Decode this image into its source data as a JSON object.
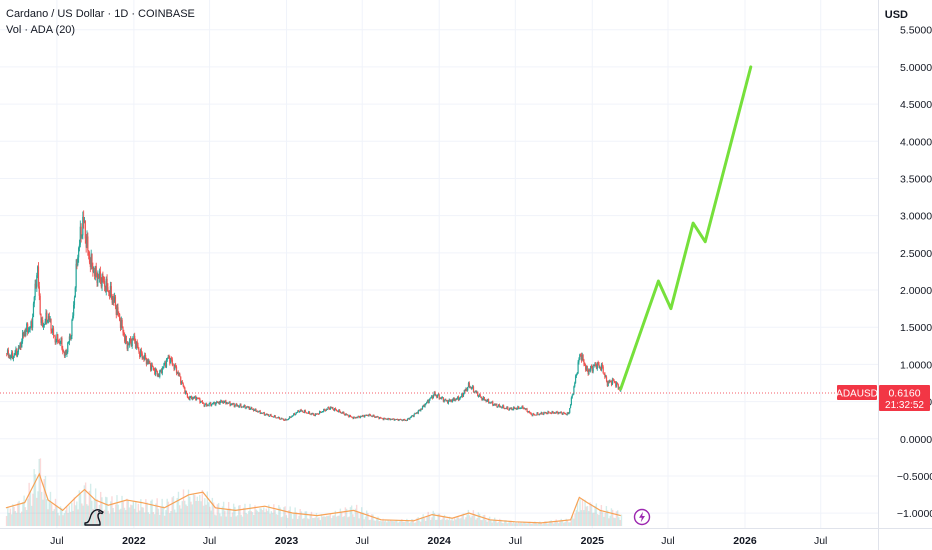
{
  "header": {
    "symbol_line": "Cardano / US Dollar · 1D · COINBASE",
    "indicator_line": "Vol · ADA (20)",
    "currency": "USD"
  },
  "price_tag": {
    "symbol": "ADAUSD",
    "price": "0.6160",
    "countdown": "21:32:52",
    "color": "#f23645"
  },
  "colors": {
    "up": "#26a69a",
    "down": "#ef5350",
    "projection": "#76e03b",
    "volume_ma": "#f7a256",
    "grid": "#f0f3fa"
  },
  "icons": [
    "tradingview-dino-logo-icon",
    "lightning-bolt-icon"
  ],
  "chart_data": {
    "type": "line",
    "y_axis": {
      "ticks": [
        "−1.0000",
        "−0.5000",
        "0.0000",
        "0.5000",
        "1.0000",
        "1.5000",
        "2.0000",
        "2.5000",
        "3.0000",
        "3.5000",
        "4.0000",
        "4.5000",
        "5.0000",
        "5.5000"
      ],
      "range": [
        -1.2,
        5.9
      ]
    },
    "x_axis": {
      "ticks": [
        {
          "label": "Jul",
          "date": "2021-07-01"
        },
        {
          "label": "2022",
          "date": "2022-01-01"
        },
        {
          "label": "Jul",
          "date": "2022-07-01"
        },
        {
          "label": "2023",
          "date": "2023-01-01"
        },
        {
          "label": "Jul",
          "date": "2023-07-01"
        },
        {
          "label": "2024",
          "date": "2024-01-01"
        },
        {
          "label": "Jul",
          "date": "2024-07-01"
        },
        {
          "label": "2025",
          "date": "2025-01-01"
        },
        {
          "label": "Jul",
          "date": "2025-07-01"
        },
        {
          "label": "2026",
          "date": "2026-01-01"
        },
        {
          "label": "Jul",
          "date": "2026-07-01"
        }
      ],
      "range": [
        "2021-02-15",
        "2026-11-15"
      ]
    },
    "price_series": [
      {
        "date": "2021-03-01",
        "v": 1.15
      },
      {
        "date": "2021-03-15",
        "v": 1.1
      },
      {
        "date": "2021-04-01",
        "v": 1.2
      },
      {
        "date": "2021-04-15",
        "v": 1.45
      },
      {
        "date": "2021-05-01",
        "v": 1.5
      },
      {
        "date": "2021-05-15",
        "v": 2.3
      },
      {
        "date": "2021-05-25",
        "v": 1.5
      },
      {
        "date": "2021-06-10",
        "v": 1.65
      },
      {
        "date": "2021-06-25",
        "v": 1.35
      },
      {
        "date": "2021-07-10",
        "v": 1.3
      },
      {
        "date": "2021-07-20",
        "v": 1.1
      },
      {
        "date": "2021-08-05",
        "v": 1.45
      },
      {
        "date": "2021-08-20",
        "v": 2.5
      },
      {
        "date": "2021-09-02",
        "v": 2.95
      },
      {
        "date": "2021-09-15",
        "v": 2.45
      },
      {
        "date": "2021-10-01",
        "v": 2.2
      },
      {
        "date": "2021-10-15",
        "v": 2.15
      },
      {
        "date": "2021-11-01",
        "v": 2.0
      },
      {
        "date": "2021-11-15",
        "v": 1.85
      },
      {
        "date": "2021-12-01",
        "v": 1.55
      },
      {
        "date": "2021-12-15",
        "v": 1.25
      },
      {
        "date": "2022-01-01",
        "v": 1.35
      },
      {
        "date": "2022-01-15",
        "v": 1.15
      },
      {
        "date": "2022-02-01",
        "v": 1.05
      },
      {
        "date": "2022-03-01",
        "v": 0.85
      },
      {
        "date": "2022-03-25",
        "v": 1.1
      },
      {
        "date": "2022-04-15",
        "v": 0.9
      },
      {
        "date": "2022-05-10",
        "v": 0.55
      },
      {
        "date": "2022-06-01",
        "v": 0.55
      },
      {
        "date": "2022-06-20",
        "v": 0.45
      },
      {
        "date": "2022-08-01",
        "v": 0.5
      },
      {
        "date": "2022-09-01",
        "v": 0.45
      },
      {
        "date": "2022-10-01",
        "v": 0.42
      },
      {
        "date": "2022-11-10",
        "v": 0.33
      },
      {
        "date": "2022-12-31",
        "v": 0.25
      },
      {
        "date": "2023-02-01",
        "v": 0.38
      },
      {
        "date": "2023-03-10",
        "v": 0.32
      },
      {
        "date": "2023-04-15",
        "v": 0.42
      },
      {
        "date": "2023-06-10",
        "v": 0.28
      },
      {
        "date": "2023-07-15",
        "v": 0.32
      },
      {
        "date": "2023-08-20",
        "v": 0.27
      },
      {
        "date": "2023-10-15",
        "v": 0.25
      },
      {
        "date": "2023-11-15",
        "v": 0.38
      },
      {
        "date": "2023-12-20",
        "v": 0.6
      },
      {
        "date": "2024-01-20",
        "v": 0.5
      },
      {
        "date": "2024-02-20",
        "v": 0.55
      },
      {
        "date": "2024-03-12",
        "v": 0.72
      },
      {
        "date": "2024-04-10",
        "v": 0.55
      },
      {
        "date": "2024-05-15",
        "v": 0.45
      },
      {
        "date": "2024-06-15",
        "v": 0.4
      },
      {
        "date": "2024-07-20",
        "v": 0.42
      },
      {
        "date": "2024-08-10",
        "v": 0.32
      },
      {
        "date": "2024-09-15",
        "v": 0.35
      },
      {
        "date": "2024-10-15",
        "v": 0.35
      },
      {
        "date": "2024-11-05",
        "v": 0.33
      },
      {
        "date": "2024-11-20",
        "v": 0.75
      },
      {
        "date": "2024-12-03",
        "v": 1.15
      },
      {
        "date": "2024-12-20",
        "v": 0.9
      },
      {
        "date": "2025-01-10",
        "v": 1.0
      },
      {
        "date": "2025-01-25",
        "v": 0.95
      },
      {
        "date": "2025-02-05",
        "v": 0.75
      },
      {
        "date": "2025-02-20",
        "v": 0.78
      },
      {
        "date": "2025-03-01",
        "v": 0.72
      },
      {
        "date": "2025-03-10",
        "v": 0.65
      }
    ],
    "projection_series": [
      {
        "date": "2025-03-10",
        "v": 0.67
      },
      {
        "date": "2025-06-08",
        "v": 2.12
      },
      {
        "date": "2025-07-08",
        "v": 1.75
      },
      {
        "date": "2025-08-30",
        "v": 2.9
      },
      {
        "date": "2025-09-28",
        "v": 2.65
      },
      {
        "date": "2026-01-15",
        "v": 5.0
      }
    ],
    "current_price": 0.616,
    "volume_ma_series": [
      {
        "date": "2021-03-01",
        "v": 0.35
      },
      {
        "date": "2021-04-15",
        "v": 0.45
      },
      {
        "date": "2021-05-20",
        "v": 1.0
      },
      {
        "date": "2021-06-10",
        "v": 0.5
      },
      {
        "date": "2021-07-15",
        "v": 0.3
      },
      {
        "date": "2021-08-15",
        "v": 0.55
      },
      {
        "date": "2021-09-05",
        "v": 0.7
      },
      {
        "date": "2021-10-01",
        "v": 0.5
      },
      {
        "date": "2021-11-01",
        "v": 0.4
      },
      {
        "date": "2021-12-15",
        "v": 0.5
      },
      {
        "date": "2022-01-20",
        "v": 0.45
      },
      {
        "date": "2022-03-15",
        "v": 0.35
      },
      {
        "date": "2022-05-12",
        "v": 0.6
      },
      {
        "date": "2022-06-15",
        "v": 0.65
      },
      {
        "date": "2022-07-15",
        "v": 0.35
      },
      {
        "date": "2022-09-01",
        "v": 0.3
      },
      {
        "date": "2022-11-10",
        "v": 0.38
      },
      {
        "date": "2023-01-15",
        "v": 0.25
      },
      {
        "date": "2023-03-15",
        "v": 0.2
      },
      {
        "date": "2023-06-10",
        "v": 0.3
      },
      {
        "date": "2023-08-15",
        "v": 0.12
      },
      {
        "date": "2023-11-01",
        "v": 0.1
      },
      {
        "date": "2023-12-15",
        "v": 0.22
      },
      {
        "date": "2024-02-01",
        "v": 0.15
      },
      {
        "date": "2024-03-12",
        "v": 0.25
      },
      {
        "date": "2024-05-01",
        "v": 0.12
      },
      {
        "date": "2024-07-01",
        "v": 0.08
      },
      {
        "date": "2024-09-01",
        "v": 0.06
      },
      {
        "date": "2024-11-10",
        "v": 0.12
      },
      {
        "date": "2024-12-01",
        "v": 0.55
      },
      {
        "date": "2024-12-20",
        "v": 0.45
      },
      {
        "date": "2025-01-20",
        "v": 0.3
      },
      {
        "date": "2025-03-10",
        "v": 0.2
      }
    ]
  }
}
